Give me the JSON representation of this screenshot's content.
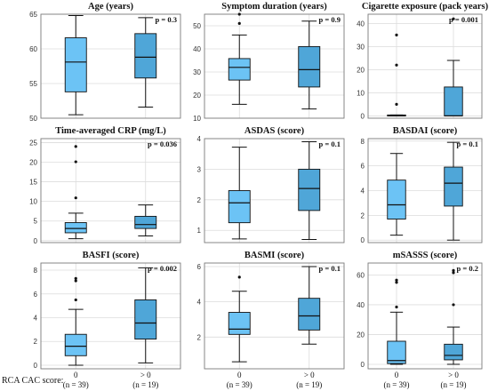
{
  "figure": {
    "row_label": "RCA CAC score:",
    "group_labels": [
      "0",
      "> 0"
    ],
    "group_counts": [
      "(n = 39)",
      "(n = 19)"
    ],
    "box_colors": [
      "#6cc3f5",
      "#4fa6d8"
    ],
    "border_color": "#7a7a7a",
    "grid_color": "#dcdcdc"
  },
  "chart_data": [
    {
      "type": "box",
      "title": "Age (years)",
      "p_label": "p = 0.3",
      "ylim": [
        50,
        65
      ],
      "ticks": [
        50,
        55,
        60,
        65
      ],
      "groups": [
        {
          "whisker_low": 50.5,
          "q1": 53.8,
          "median": 58.1,
          "q3": 61.6,
          "whisker_high": 64.8,
          "outliers": []
        },
        {
          "whisker_low": 51.6,
          "q1": 55.8,
          "median": 58.8,
          "q3": 62.2,
          "whisker_high": 64.5,
          "outliers": []
        }
      ]
    },
    {
      "type": "box",
      "title": "Symptom duration (years)",
      "p_label": "p = 0.9",
      "ylim": [
        10,
        55
      ],
      "ticks": [
        10,
        20,
        30,
        40,
        50
      ],
      "groups": [
        {
          "whisker_low": 16,
          "q1": 26.5,
          "median": 32,
          "q3": 35.8,
          "whisker_high": 46,
          "outliers": [
            51,
            55
          ]
        },
        {
          "whisker_low": 14,
          "q1": 23.5,
          "median": 31,
          "q3": 41,
          "whisker_high": 52,
          "outliers": []
        }
      ]
    },
    {
      "type": "box",
      "title": "Cigarette exposure (pack years)",
      "p_label": "p = 0.001",
      "ylim": [
        -1,
        44
      ],
      "ticks": [
        0,
        10,
        20,
        30,
        40
      ],
      "groups": [
        {
          "whisker_low": 0,
          "q1": 0,
          "median": 0,
          "q3": 0.4,
          "whisker_high": 0.4,
          "outliers": [
            5,
            22,
            35
          ]
        },
        {
          "whisker_low": 0,
          "q1": 0,
          "median": 0,
          "q3": 12.5,
          "whisker_high": 24,
          "outliers": [
            42
          ]
        }
      ]
    },
    {
      "type": "box",
      "title": "Time-averaged CRP (mg/L)",
      "p_label": "p = 0.036",
      "ylim": [
        -0.5,
        26
      ],
      "ticks": [
        0,
        5,
        10,
        15,
        20,
        25
      ],
      "groups": [
        {
          "whisker_low": 0.5,
          "q1": 2.0,
          "median": 3.1,
          "q3": 4.6,
          "whisker_high": 7.0,
          "outliers": [
            10.9,
            20.1,
            24.0
          ]
        },
        {
          "whisker_low": 1.2,
          "q1": 3.1,
          "median": 4.1,
          "q3": 6.2,
          "whisker_high": 9.1,
          "outliers": []
        }
      ]
    },
    {
      "type": "box",
      "title": "ASDAS (score)",
      "p_label": "p = 0.1",
      "ylim": [
        0.6,
        4.0
      ],
      "ticks": [
        1,
        2,
        3,
        4
      ],
      "groups": [
        {
          "whisker_low": 0.72,
          "q1": 1.25,
          "median": 1.9,
          "q3": 2.3,
          "whisker_high": 3.72,
          "outliers": []
        },
        {
          "whisker_low": 0.7,
          "q1": 1.65,
          "median": 2.37,
          "q3": 3.0,
          "whisker_high": 3.9,
          "outliers": []
        }
      ]
    },
    {
      "type": "box",
      "title": "BASDAI (score)",
      "p_label": "p = 0.1",
      "ylim": [
        -0.2,
        8.2
      ],
      "ticks": [
        0,
        2,
        4,
        6,
        8
      ],
      "groups": [
        {
          "whisker_low": 0.4,
          "q1": 1.7,
          "median": 2.85,
          "q3": 4.85,
          "whisker_high": 7.0,
          "outliers": []
        },
        {
          "whisker_low": 0.0,
          "q1": 2.75,
          "median": 4.6,
          "q3": 5.9,
          "whisker_high": 7.9,
          "outliers": []
        }
      ]
    },
    {
      "type": "box",
      "title": "BASFI (score)",
      "p_label": "p = 0.002",
      "ylim": [
        -0.3,
        8.6
      ],
      "ticks": [
        0,
        2,
        4,
        6,
        8
      ],
      "groups": [
        {
          "whisker_low": 0.0,
          "q1": 0.8,
          "median": 1.6,
          "q3": 2.6,
          "whisker_high": 4.7,
          "outliers": [
            5.5,
            7.1,
            7.3
          ]
        },
        {
          "whisker_low": 0.2,
          "q1": 2.2,
          "median": 3.55,
          "q3": 5.5,
          "whisker_high": 8.2,
          "outliers": []
        }
      ]
    },
    {
      "type": "box",
      "title": "BASMI (score)",
      "p_label": "p = 0.1",
      "ylim": [
        0.2,
        6.2
      ],
      "ticks": [
        2,
        4,
        6
      ],
      "groups": [
        {
          "whisker_low": 0.6,
          "q1": 2.15,
          "median": 2.45,
          "q3": 3.4,
          "whisker_high": 4.6,
          "outliers": [
            5.4
          ]
        },
        {
          "whisker_low": 1.6,
          "q1": 2.4,
          "median": 3.2,
          "q3": 4.2,
          "whisker_high": 6.0,
          "outliers": []
        }
      ]
    },
    {
      "type": "box",
      "title": "mSASSS (score)",
      "p_label": "p = 0.2",
      "ylim": [
        -3,
        68
      ],
      "ticks": [
        0,
        20,
        40,
        60
      ],
      "groups": [
        {
          "whisker_low": 0,
          "q1": 0.5,
          "median": 2.5,
          "q3": 15.5,
          "whisker_high": 35,
          "outliers": [
            38.5,
            55,
            56.5
          ]
        },
        {
          "whisker_low": 0,
          "q1": 3.0,
          "median": 6.0,
          "q3": 13.5,
          "whisker_high": 25,
          "outliers": [
            40,
            61.5,
            63
          ]
        }
      ]
    }
  ]
}
